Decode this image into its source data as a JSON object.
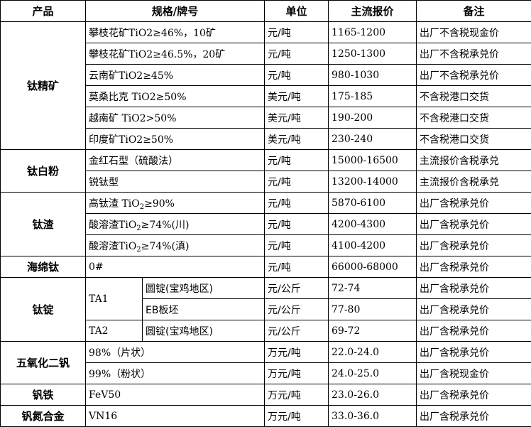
{
  "headers": [
    "产品",
    "规格/牌号",
    "单位",
    "主流报价",
    "备注"
  ],
  "groups": [
    {
      "product": "钛精矿",
      "rows": [
        {
          "spec": "攀枝花矿TiO2≥46%，10矿",
          "unit": "元/吨",
          "price": "1165-1200",
          "note": "出厂不含税现金价"
        },
        {
          "spec": "攀枝花矿TiO2≥46.5%，20矿",
          "unit": "元/吨",
          "price": "1250-1300",
          "note": "出厂不含税承兑价"
        },
        {
          "spec": "云南矿TiO2≥45%",
          "unit": "元/吨",
          "price": "980-1030",
          "note": "出厂不含税承兑价"
        },
        {
          "spec": "莫桑比克 TiO2≥50%",
          "unit": "美元/吨",
          "price": "175-185",
          "note": "不含税港口交货"
        },
        {
          "spec": "越南矿 TiO2>50%",
          "unit": "美元/吨",
          "price": "190-200",
          "note": "不含税港口交货"
        },
        {
          "spec": "印度矿TiO2≥50%",
          "unit": "美元/吨",
          "price": "230-240",
          "note": "不含税港口交货"
        }
      ]
    },
    {
      "product": "钛白粉",
      "rows": [
        {
          "spec": "金红石型（硫酸法）",
          "unit": "元/吨",
          "price": "15000-16500",
          "note": "主流报价含税承兑"
        },
        {
          "spec": "锐钛型",
          "unit": "元/吨",
          "price": "13200-14000",
          "note": "主流报价含税承兑"
        }
      ]
    },
    {
      "product": "钛渣",
      "rows": [
        {
          "spec": "高钛渣 TiO",
          "spec_sub": "2",
          "spec_post": "≥90%",
          "unit": "元/吨",
          "price": "5870-6100",
          "note": "出厂含税承兑价"
        },
        {
          "spec": "酸溶渣TiO",
          "spec_sub": "2",
          "spec_post": "≥74%(川)",
          "unit": "元/吨",
          "price": "4200-4300",
          "note": "出厂含税承兑价"
        },
        {
          "spec": "酸溶渣TiO",
          "spec_sub": "2",
          "spec_post": "≥74%(滇)",
          "unit": "元/吨",
          "price": "4100-4200",
          "note": "出厂含税承兑价"
        }
      ]
    },
    {
      "product": "海绵钛",
      "rows": [
        {
          "spec": "0#",
          "unit": "元/吨",
          "price": "66000-68000",
          "note": "出厂含税承兑价"
        }
      ]
    },
    {
      "product": "钛锭",
      "split": true,
      "rows": [
        {
          "grade": "TA1",
          "grade_span": 2,
          "form": "圆锭(宝鸡地区)",
          "unit": "元/公斤",
          "price": "72-74",
          "note": "出厂含税承兑价"
        },
        {
          "form": "EB板坯",
          "unit": "元/公斤",
          "price": "77-80",
          "note": "出厂含税承兑价"
        },
        {
          "grade": "TA2",
          "grade_span": 1,
          "form": "圆锭(宝鸡地区)",
          "unit": "元/公斤",
          "price": "69-72",
          "note": "出厂含税承兑价"
        }
      ]
    },
    {
      "product": "五氧化二钒",
      "rows": [
        {
          "spec": "98%（片状）",
          "unit": "万元/吨",
          "price": "22.0-24.0",
          "note": "出厂含税承兑价"
        },
        {
          "spec": "99%（粉状）",
          "unit": "万元/吨",
          "price": "24.0-25.0",
          "note": "出厂含税现金价"
        }
      ]
    },
    {
      "product": "钒铁",
      "rows": [
        {
          "spec": "FeV50",
          "unit": "万元/吨",
          "price": "23.0-26.0",
          "note": "出厂含税承兑价"
        }
      ]
    },
    {
      "product": "钒氮合金",
      "rows": [
        {
          "spec": "VN16",
          "unit": "万元/吨",
          "price": "33.0-36.0",
          "note": "出厂含税承兑价"
        }
      ]
    }
  ]
}
